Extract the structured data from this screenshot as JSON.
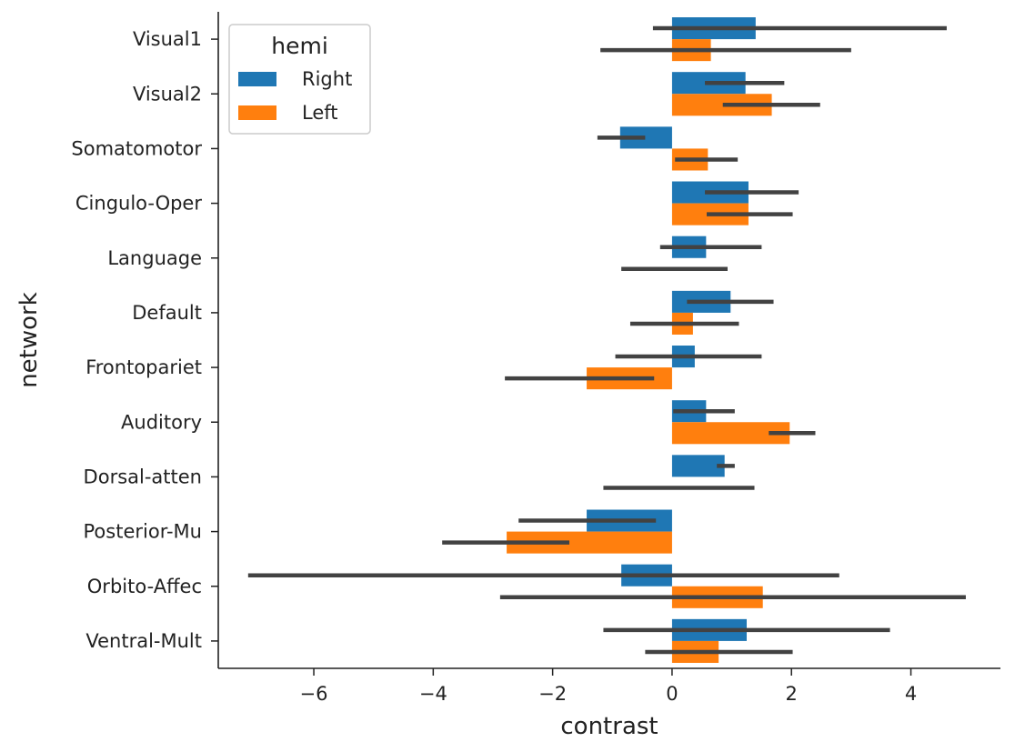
{
  "chart_data": {
    "type": "bar",
    "orientation": "horizontal",
    "xlabel": "contrast",
    "ylabel": "network",
    "xlim": [
      -7.6,
      5.5
    ],
    "x_ticks": [
      -6,
      -4,
      -2,
      0,
      2,
      4
    ],
    "x_tick_labels": [
      "−6",
      "−4",
      "−2",
      "0",
      "2",
      "4"
    ],
    "grid": false,
    "legend": {
      "title": "hemi",
      "position": "top-left"
    },
    "categories": [
      "Visual1",
      "Visual2",
      "Somatomotor",
      "Cingulo-Oper",
      "Language",
      "Default",
      "Frontopariet",
      "Auditory",
      "Dorsal-atten",
      "Posterior-Mu",
      "Orbito-Affec",
      "Ventral-Mult"
    ],
    "series": [
      {
        "name": "Right",
        "color": "#1f77b4",
        "values": [
          1.4,
          1.23,
          -0.87,
          1.28,
          0.57,
          0.98,
          0.38,
          0.57,
          0.88,
          -1.43,
          -0.85,
          1.25
        ],
        "ci": [
          [
            -0.32,
            4.6
          ],
          [
            0.55,
            1.88
          ],
          [
            -1.25,
            -0.45
          ],
          [
            0.55,
            2.12
          ],
          [
            -0.2,
            1.5
          ],
          [
            0.25,
            1.7
          ],
          [
            -0.95,
            1.5
          ],
          [
            0.02,
            1.05
          ],
          [
            0.75,
            1.05
          ],
          [
            -2.57,
            -0.27
          ],
          [
            -7.1,
            2.8
          ],
          [
            -1.15,
            3.65
          ]
        ]
      },
      {
        "name": "Left",
        "color": "#ff7f0e",
        "values": [
          0.65,
          1.67,
          0.6,
          1.28,
          0.0,
          0.35,
          -1.43,
          1.97,
          0.0,
          -2.77,
          1.52,
          0.78
        ],
        "ci": [
          [
            -1.2,
            3.0
          ],
          [
            0.85,
            2.48
          ],
          [
            0.05,
            1.1
          ],
          [
            0.58,
            2.02
          ],
          [
            -0.85,
            0.93
          ],
          [
            -0.7,
            1.12
          ],
          [
            -2.8,
            -0.3
          ],
          [
            1.62,
            2.4
          ],
          [
            -1.15,
            1.38
          ],
          [
            -3.85,
            -1.72
          ],
          [
            -2.88,
            4.92
          ],
          [
            -0.45,
            2.02
          ]
        ]
      }
    ]
  }
}
